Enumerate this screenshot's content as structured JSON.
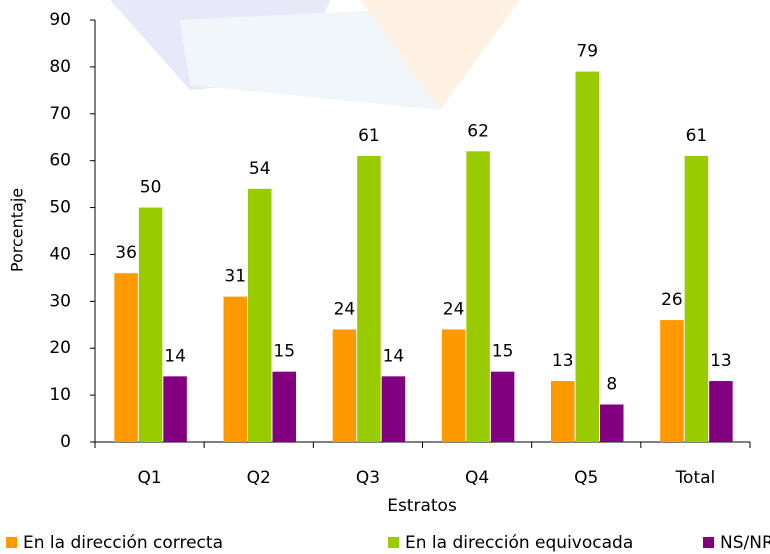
{
  "chart_data": {
    "type": "bar",
    "y_label": "Porcentaje",
    "x_label": "Estratos",
    "categories": [
      "Q1",
      "Q2",
      "Q3",
      "Q4",
      "Q5",
      "Total"
    ],
    "series": [
      {
        "name": "En la dirección correcta",
        "color": "#ff9900",
        "values": [
          36,
          31,
          24,
          24,
          13,
          26
        ]
      },
      {
        "name": "En la dirección equivocada",
        "color": "#99cc00",
        "values": [
          50,
          54,
          61,
          62,
          79,
          61
        ]
      },
      {
        "name": "NS/NR",
        "color": "#800080",
        "values": [
          14,
          15,
          14,
          15,
          8,
          13
        ]
      }
    ],
    "ylim": [
      0,
      90
    ],
    "yticks": [
      0,
      10,
      20,
      30,
      40,
      50,
      60,
      70,
      80,
      90
    ],
    "legend": "bottom"
  }
}
